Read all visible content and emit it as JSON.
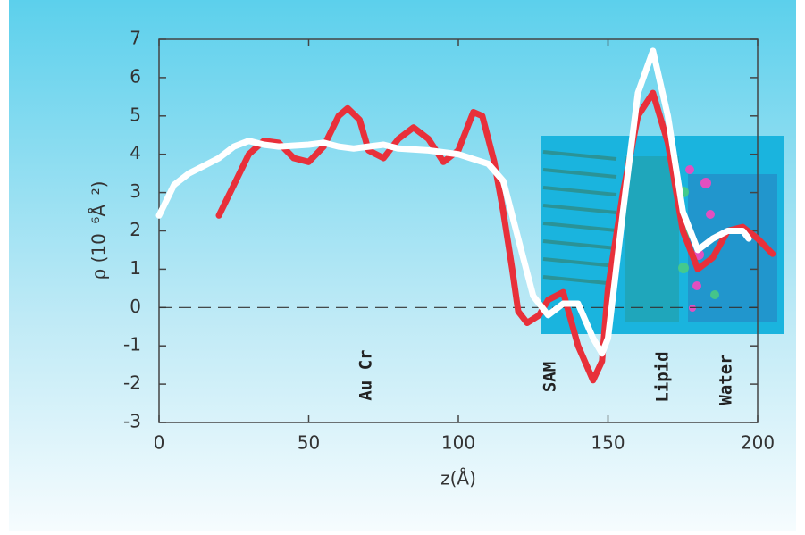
{
  "chart_data": {
    "type": "line",
    "x_label": "z(Å)",
    "y_label": "ρ (10⁻⁶Å⁻²)",
    "annotations": [
      "Au Cr",
      "SAM",
      "Lipid",
      "Water"
    ],
    "reference_line": 0,
    "xlim": [
      0,
      200
    ],
    "ylim": [
      -3,
      7
    ],
    "xticks": [
      0,
      50,
      100,
      150,
      200
    ],
    "yticks": [
      -3,
      -2,
      -1,
      0,
      1,
      2,
      3,
      4,
      5,
      6,
      7
    ],
    "series": [
      {
        "color": "#e8303a",
        "x": [
          20,
          25,
          30,
          35,
          40,
          45,
          50,
          55,
          60,
          63,
          67,
          70,
          75,
          80,
          85,
          90,
          95,
          100,
          105,
          108,
          112,
          115,
          118,
          120,
          123,
          127,
          130,
          135,
          140,
          145,
          148,
          150,
          155,
          160,
          165,
          170,
          175,
          180,
          185,
          190,
          195,
          200,
          205
        ],
        "values": [
          2.4,
          3.2,
          4.0,
          4.35,
          4.3,
          3.9,
          3.8,
          4.2,
          5.0,
          5.2,
          4.9,
          4.1,
          3.9,
          4.4,
          4.7,
          4.4,
          3.8,
          4.1,
          5.1,
          5.0,
          3.8,
          2.5,
          1.0,
          -0.1,
          -0.4,
          -0.2,
          0.2,
          0.4,
          -1.0,
          -1.9,
          -1.4,
          0.5,
          3.0,
          5.0,
          5.6,
          4.3,
          2.0,
          1.0,
          1.3,
          2.0,
          2.1,
          1.8,
          1.4
        ]
      },
      {
        "color": "#ffffff",
        "x": [
          0,
          5,
          10,
          15,
          20,
          25,
          30,
          35,
          40,
          50,
          55,
          60,
          65,
          70,
          75,
          80,
          90,
          100,
          110,
          115,
          120,
          125,
          130,
          135,
          140,
          145,
          148,
          150,
          155,
          160,
          165,
          170,
          175,
          180,
          185,
          190,
          195,
          197
        ],
        "values": [
          2.4,
          3.2,
          3.5,
          3.7,
          3.9,
          4.2,
          4.35,
          4.25,
          4.2,
          4.25,
          4.3,
          4.2,
          4.15,
          4.2,
          4.25,
          4.15,
          4.1,
          4.0,
          3.75,
          3.3,
          1.8,
          0.3,
          -0.2,
          0.1,
          0.1,
          -0.8,
          -1.2,
          -0.8,
          2.5,
          5.6,
          6.7,
          5.0,
          2.5,
          1.5,
          1.8,
          2.0,
          2.0,
          1.8
        ]
      }
    ]
  }
}
